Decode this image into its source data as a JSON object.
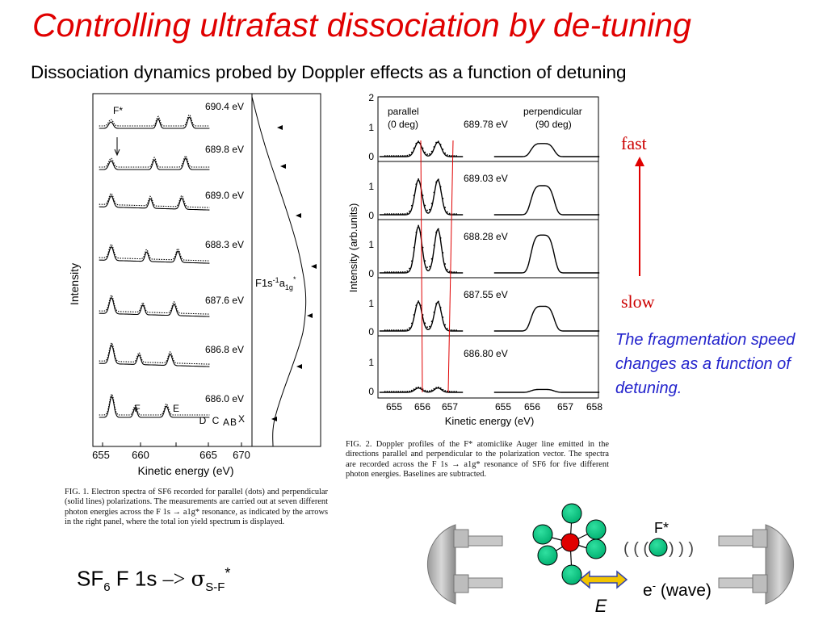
{
  "slide": {
    "title": "Controlling ultrafast dissociation by de-tuning",
    "subtitle": "Dissociation dynamics probed by Doppler effects  as a function of detuning",
    "formula_prefix": "SF",
    "formula_sub6": "6",
    "formula_mid": " F 1s ",
    "formula_arrow": "–>",
    "formula_sigma": "σ",
    "formula_sub": "S-F",
    "formula_star": "*",
    "fast_label": "fast",
    "slow_label": "slow",
    "note": "The fragmentation speed changes as a function of detuning."
  },
  "fig1": {
    "caption": "FIG. 1.   Electron spectra of SF6 recorded for parallel (dots) and perpendicular (solid lines) polarizations. The measurements are carried out at seven different photon energies across the F 1s → a1g* resonance, as indicated by the arrows in the right panel, where the total ion yield spectrum is displayed.",
    "ylabel": "Intensity",
    "xlabel": "Kinetic energy (eV)",
    "xticks": [
      "655",
      "660",
      "665",
      "670"
    ],
    "energies": [
      "690.4 eV",
      "689.8 eV",
      "689.0 eV",
      "688.3 eV",
      "687.6 eV",
      "686.8 eV",
      "686.0 eV"
    ],
    "fstar": "F*",
    "peak_labels": [
      "F",
      "E",
      "D",
      "C",
      "A",
      "B",
      "X"
    ],
    "resonance_label": "F1s",
    "resonance_sup": "-1",
    "resonance_a": "a",
    "resonance_sub": "1g",
    "resonance_star": "*"
  },
  "fig2": {
    "caption": "FIG. 2.   Doppler profiles of the F* atomiclike Auger line emitted in the directions parallel and perpendicular to the polarization vector. The spectra are recorded across the F 1s → a1g* resonance of SF6 for five different photon energies. Baselines are subtracted.",
    "ylabel": "Intensity (arb.units)",
    "xlabel": "Kinetic energy (eV)",
    "xticks": [
      "655",
      "656",
      "657",
      "655",
      "656",
      "657",
      "658"
    ],
    "yticks_top": [
      "2",
      "1",
      "0"
    ],
    "yticks": [
      "1",
      "0"
    ],
    "parallel_label": "parallel",
    "parallel_deg": "(0 deg)",
    "perp_label": "perpendicular",
    "perp_deg": "(90 deg)",
    "energies": [
      "689.78 eV",
      "689.03 eV",
      "688.28 eV",
      "687.55 eV",
      "686.80 eV"
    ]
  },
  "diagram": {
    "fstar": "F*",
    "waves_left": "( ( (",
    "waves_right": ") ) )",
    "e_field": "E",
    "electron_label": "e",
    "electron_sup": "-",
    "electron_tail": " (wave)"
  },
  "chart_data": [
    {
      "type": "line",
      "title": "",
      "xlabel": "Kinetic energy (eV)",
      "ylabel": "Intensity",
      "xlim": [
        654,
        671
      ],
      "series": [
        {
          "name": "690.4 eV"
        },
        {
          "name": "689.8 eV"
        },
        {
          "name": "689.0 eV"
        },
        {
          "name": "688.3 eV"
        },
        {
          "name": "687.6 eV"
        },
        {
          "name": "686.8 eV"
        },
        {
          "name": "686.0 eV"
        }
      ]
    },
    {
      "type": "line",
      "title": "",
      "xlabel": "Kinetic energy (eV)",
      "ylabel": "Intensity (arb.units)",
      "ylim": [
        0,
        2
      ],
      "series": [
        {
          "name": "689.78 eV",
          "parallel_peaks_eV": [
            655.9,
            656.6
          ],
          "parallel_heights": [
            0.5,
            0.5
          ],
          "perp_center_eV": 656.3,
          "perp_height": 0.45
        },
        {
          "name": "689.03 eV",
          "parallel_peaks_eV": [
            655.9,
            656.6
          ],
          "parallel_heights": [
            1.2,
            1.2
          ],
          "perp_center_eV": 656.3,
          "perp_height": 1.0
        },
        {
          "name": "688.28 eV",
          "parallel_peaks_eV": [
            655.9,
            656.6
          ],
          "parallel_heights": [
            1.6,
            1.5
          ],
          "perp_center_eV": 656.3,
          "perp_height": 1.3
        },
        {
          "name": "687.55 eV",
          "parallel_peaks_eV": [
            655.9,
            656.6
          ],
          "parallel_heights": [
            1.0,
            1.0
          ],
          "perp_center_eV": 656.3,
          "perp_height": 0.85
        },
        {
          "name": "686.80 eV",
          "parallel_peaks_eV": [
            655.9,
            656.6
          ],
          "parallel_heights": [
            0.15,
            0.15
          ],
          "perp_center_eV": 656.3,
          "perp_height": 0.1
        }
      ]
    }
  ]
}
